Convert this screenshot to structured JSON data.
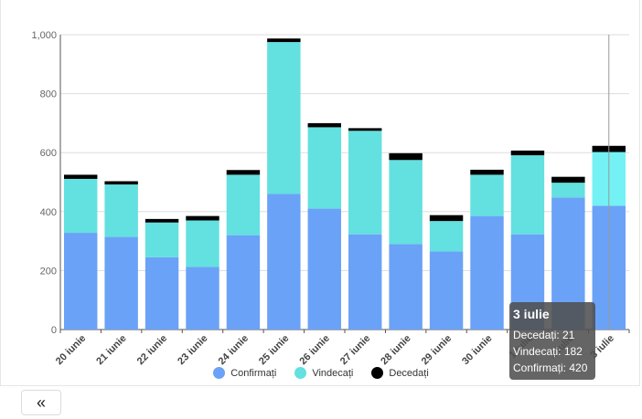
{
  "chart_data": {
    "type": "bar",
    "stacked": true,
    "categories": [
      "20 iunie",
      "21 iunie",
      "22 iunie",
      "23 iunie",
      "24 iunie",
      "25 iunie",
      "26 iunie",
      "27 iunie",
      "28 iunie",
      "29 iunie",
      "30 iunie",
      "1 iulie",
      "2 iulie",
      "3 iulie"
    ],
    "series": [
      {
        "name": "Confirmați",
        "color": "#6aa2f7",
        "values": [
          328,
          314,
          245,
          212,
          320,
          460,
          410,
          323,
          290,
          265,
          385,
          323,
          448,
          420
        ]
      },
      {
        "name": "Vindecați",
        "color": "#63e0e0",
        "values": [
          183,
          178,
          118,
          158,
          205,
          515,
          276,
          351,
          285,
          103,
          140,
          268,
          50,
          182
        ]
      },
      {
        "name": "Decedați",
        "color": "#000000",
        "values": [
          14,
          11,
          12,
          15,
          16,
          12,
          14,
          9,
          23,
          20,
          17,
          16,
          20,
          21
        ]
      }
    ],
    "ylim": [
      0,
      1000
    ],
    "yticks": [
      "0",
      "200",
      "400",
      "600",
      "800",
      "1,000"
    ],
    "highlight_index": 13,
    "grid": true,
    "legend_position": "bottom"
  },
  "tooltip": {
    "title": "3 iulie",
    "lines": [
      "Decedați: 21",
      "Vindecați: 182",
      "Confirmați: 420"
    ]
  },
  "nav": {
    "back_label": "«"
  }
}
